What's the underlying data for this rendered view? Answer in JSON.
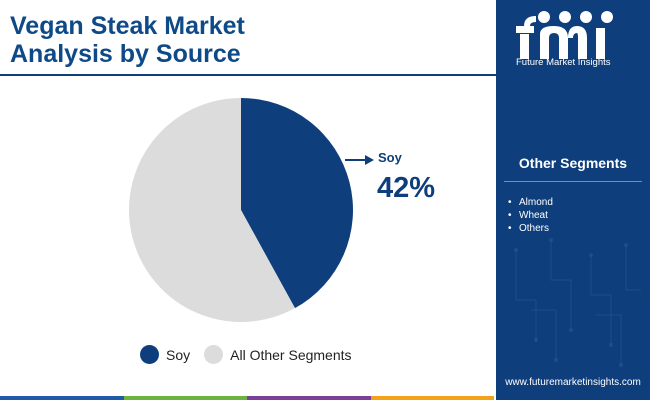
{
  "title_lines": [
    "Vegan Steak Market",
    "Analysis by Source"
  ],
  "chart_data": {
    "type": "pie",
    "slices": [
      {
        "label": "Soy",
        "value": 42,
        "color": "#0e3f7c"
      },
      {
        "label": "All Other Segments",
        "value": 58,
        "color": "#dcdcdc"
      }
    ],
    "callout": {
      "label": "Soy",
      "value_text": "42%"
    },
    "legend": [
      "Soy",
      "All Other Segments"
    ]
  },
  "sidebar": {
    "logo_text": "Future Market Insights",
    "segments_title": "Other Segments",
    "segments": [
      "Almond",
      "Wheat",
      "Others"
    ],
    "website": "www.futuremarketinsights.com"
  },
  "colors": {
    "brand": "#0e3f7c",
    "title": "#0e4a88",
    "other": "#dcdcdc",
    "accent_bar": [
      "#1f5aa6",
      "#6db33f",
      "#7b3f97",
      "#f2a21b"
    ]
  }
}
